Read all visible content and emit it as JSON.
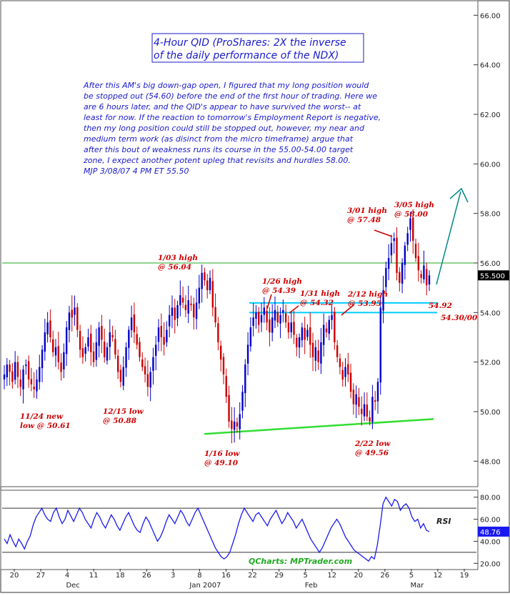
{
  "chart_data": [
    {
      "type": "candlestick",
      "title_line1": "4-Hour QID (ProShares: 2X the inverse",
      "title_line2": "of the daily performance of the NDX)",
      "commentary": [
        "After this AM's big down-gap open, I figured that my long position would",
        "be stopped out (54.60) before the end of the first hour of trading. Here we",
        "are 6 hours later, and the QID's appear to have survived the worst-- at",
        "least for now.  If the reaction to tomorrow's Employment Report is negative,",
        "then my long position could still be stopped out, however, my near and",
        "medium term work (as disinct from the micro timeframe) argue that",
        "after this bout of weakness runs its course in the 55.00-54.00 target",
        "zone, I expect another potent upleg that revisits and hurdles 58.00.",
        "MJP  3/08/07  4 PM ET  55.50"
      ],
      "ylim": [
        47,
        66.5
      ],
      "y_ticks": [
        "48.00",
        "50.00",
        "52.00",
        "54.00",
        "56.00",
        "58.00",
        "60.00",
        "62.00",
        "64.00",
        "66.00"
      ],
      "last_price_label": "55.500",
      "series_close": [
        51.5,
        51.9,
        51.6,
        51.2,
        52.0,
        51.4,
        51.0,
        51.7,
        51.9,
        51.3,
        51.1,
        50.9,
        51.3,
        51.8,
        52.5,
        53.2,
        53.6,
        53.0,
        52.4,
        52.6,
        52.0,
        51.6,
        52.4,
        53.4,
        54.0,
        53.8,
        54.2,
        53.3,
        52.5,
        52.2,
        52.6,
        53.0,
        52.4,
        52.0,
        52.8,
        53.4,
        52.9,
        52.2,
        52.6,
        53.2,
        53.0,
        52.3,
        51.6,
        51.2,
        51.8,
        52.6,
        53.3,
        53.8,
        53.2,
        52.7,
        52.2,
        51.8,
        51.5,
        51.0,
        51.6,
        52.2,
        52.7,
        53.4,
        53.0,
        52.7,
        53.3,
        53.9,
        54.2,
        53.7,
        54.3,
        54.7,
        54.4,
        54.1,
        54.5,
        54.3,
        53.8,
        54.4,
        55.0,
        55.6,
        55.3,
        54.9,
        55.4,
        54.2,
        53.6,
        52.8,
        52.1,
        51.5,
        50.6,
        49.6,
        49.3,
        49.6,
        49.4,
        49.9,
        50.8,
        51.9,
        52.7,
        53.4,
        53.8,
        54.0,
        53.5,
        53.9,
        54.2,
        53.6,
        53.2,
        53.8,
        54.1,
        53.6,
        53.9,
        54.1,
        53.6,
        53.2,
        53.6,
        53.1,
        52.6,
        53.0,
        53.4,
        52.9,
        53.3,
        52.7,
        52.2,
        52.6,
        52.0,
        52.8,
        53.5,
        53.2,
        53.7,
        53.9,
        52.8,
        52.2,
        51.8,
        51.3,
        51.8,
        51.5,
        50.8,
        50.3,
        50.7,
        50.2,
        49.9,
        50.3,
        49.8,
        49.6,
        50.6,
        50.4,
        51.2,
        54.2,
        54.9,
        55.8,
        56.2,
        56.8,
        57.0,
        55.6,
        55.2,
        56.0,
        56.7,
        57.2,
        57.8,
        56.9,
        56.2,
        55.7,
        55.4,
        55.9,
        55.1,
        55.5
      ],
      "annotations": {
        "a1": [
          "11/24 new",
          "low @ 50.61"
        ],
        "a2": [
          "12/15 low",
          "@ 50.88"
        ],
        "a3": [
          "1/03 high",
          "@ 56.04"
        ],
        "a4": [
          "1/16 low",
          "@ 49.10"
        ],
        "a5": [
          "1/26 high",
          "@ 54.39"
        ],
        "a6": [
          "1/31 high",
          "@ 54.32"
        ],
        "a7": [
          "2/12 high",
          "@ 53.95"
        ],
        "a8": [
          "2/22 low",
          "@ 49.56"
        ],
        "a9": [
          "3/01 high",
          "@ 57.48"
        ],
        "a10": [
          "3/05 high",
          "@ 58.00"
        ],
        "a11": "54.92",
        "a12": "54.30/00"
      },
      "horizontal_lines": [
        56.0,
        54.39,
        54.0
      ],
      "support_line": [
        [
          49.1,
          "1/16"
        ],
        [
          49.7,
          "3/12"
        ]
      ]
    },
    {
      "type": "line",
      "name": "RSI",
      "legend_label": "RSI",
      "ylim": [
        15,
        85
      ],
      "y_ticks": [
        "20.00",
        "40.00",
        "60.00",
        "80.00"
      ],
      "last_label": "48.76",
      "reference_levels": [
        30,
        70
      ],
      "values": [
        42,
        38,
        46,
        40,
        35,
        42,
        38,
        33,
        40,
        45,
        55,
        62,
        66,
        70,
        64,
        60,
        58,
        66,
        70,
        62,
        56,
        60,
        68,
        63,
        58,
        64,
        70,
        66,
        60,
        56,
        52,
        60,
        66,
        62,
        56,
        52,
        58,
        64,
        60,
        54,
        50,
        56,
        62,
        66,
        60,
        54,
        50,
        48,
        56,
        62,
        58,
        52,
        46,
        40,
        44,
        50,
        58,
        64,
        60,
        56,
        62,
        68,
        64,
        58,
        54,
        60,
        66,
        70,
        64,
        58,
        52,
        46,
        40,
        34,
        30,
        26,
        24,
        26,
        30,
        38,
        46,
        56,
        64,
        70,
        66,
        62,
        58,
        64,
        66,
        62,
        58,
        54,
        60,
        64,
        68,
        62,
        56,
        60,
        66,
        62,
        58,
        52,
        56,
        60,
        54,
        48,
        42,
        38,
        34,
        30,
        34,
        40,
        46,
        52,
        56,
        60,
        56,
        50,
        44,
        40,
        36,
        32,
        30,
        28,
        26,
        24,
        22,
        26,
        24,
        36,
        54,
        74,
        80,
        76,
        72,
        78,
        76,
        68,
        72,
        74,
        70,
        62,
        58,
        60,
        52,
        56,
        50,
        48.76
      ],
      "source_label": "QCharts: MPTrader.com"
    }
  ],
  "x_axis": {
    "tick_labels": [
      "20",
      "27",
      "4",
      "11",
      "18",
      "26",
      "3",
      "8",
      "16",
      "22",
      "29",
      "5",
      "12",
      "20",
      "26",
      "5",
      "12",
      "19"
    ],
    "month_labels": [
      "Dec",
      "Jan 2007",
      "Feb",
      "Mar"
    ]
  },
  "colors": {
    "up_candle": "#0000cc",
    "down_candle": "#cc0000",
    "flat_candle": "#d4b400",
    "horizontal_green": "#22aa22",
    "horizontal_cyan": "#00ccff",
    "support_green": "#33dd33",
    "arrow": "#008888",
    "rsi_line": "#1a1aee",
    "rsi_label_bg": "#1a1aee"
  }
}
